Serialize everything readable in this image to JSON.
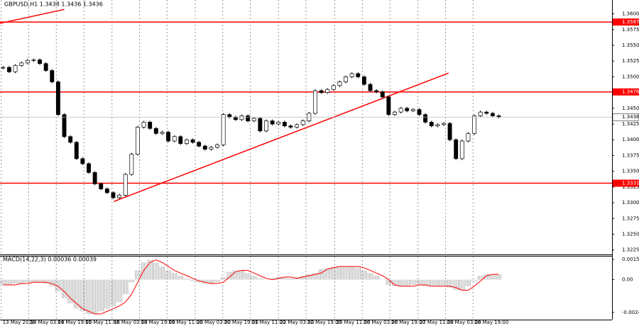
{
  "chart_data": [
    {
      "type": "candlestick",
      "header": "GBPUSD,H1  1.3438 1.3436 1.3436",
      "closes": [
        1.3515,
        1.3508,
        1.3518,
        1.3522,
        1.3526,
        1.3527,
        1.3521,
        1.351,
        1.3492,
        1.344,
        1.3405,
        1.3396,
        1.337,
        1.3362,
        1.3348,
        1.333,
        1.3322,
        1.3316,
        1.3308,
        1.3312,
        1.3345,
        1.3377,
        1.342,
        1.3428,
        1.3418,
        1.341,
        1.3412,
        1.3398,
        1.3405,
        1.3394,
        1.34,
        1.3396,
        1.339,
        1.3385,
        1.3388,
        1.3392,
        1.344,
        1.3436,
        1.3432,
        1.3438,
        1.343,
        1.3434,
        1.3414,
        1.343,
        1.3425,
        1.3428,
        1.3422,
        1.342,
        1.3424,
        1.343,
        1.3442,
        1.3478,
        1.3475,
        1.348,
        1.3486,
        1.3492,
        1.35,
        1.3505,
        1.35,
        1.3488,
        1.3478,
        1.3476,
        1.3468,
        1.344,
        1.3444,
        1.345,
        1.3446,
        1.3448,
        1.344,
        1.3428,
        1.3422,
        1.3424,
        1.3426,
        1.34,
        1.337,
        1.3398,
        1.341,
        1.3438,
        1.3444,
        1.3442,
        1.3438,
        1.3436
      ],
      "xlim": [
        0,
        100
      ],
      "ylim": [
        1.3219,
        1.3622
      ],
      "yticks": [
        1.3225,
        {
          "value": 1.325,
          "label": "1.3250"
        },
        1.3275,
        {
          "value": 1.33,
          "label": "1.3300"
        },
        1.3325,
        {
          "value": 1.335,
          "label": "1.3350"
        },
        1.3375,
        {
          "value": 1.34,
          "label": "1.3400"
        },
        1.3425,
        {
          "value": 1.345,
          "label": "1.3450"
        },
        1.3475,
        {
          "value": 1.35,
          "label": "1.3500"
        },
        1.3525,
        {
          "value": 1.355,
          "label": "1.3550"
        },
        1.3575,
        {
          "value": 1.36,
          "label": "1.3600"
        }
      ],
      "levels": [
        1.3587,
        1.3476,
        1.3331
      ],
      "level_color": "#ff0000",
      "trendlines": [
        {
          "x": [
            18.6,
            73.3
          ],
          "y": [
            1.3302,
            1.3506
          ]
        },
        {
          "x": [
            0,
            10.5
          ],
          "y": [
            1.3585,
            1.3607
          ]
        }
      ],
      "xticks": [
        {
          "value": 0.2,
          "label": "13 May 2026"
        },
        {
          "value": 4.7,
          "label": "14 May 03:00"
        },
        {
          "value": 9.2,
          "label": "14 May 19:00"
        },
        {
          "value": 13.7,
          "label": "15 May 11:00"
        },
        {
          "value": 18.3,
          "label": "18 May 03:00"
        },
        {
          "value": 22.8,
          "label": "18 May 19:00"
        },
        {
          "value": 27.3,
          "label": "19 May 11:00"
        },
        {
          "value": 31.9,
          "label": "20 May 03:00"
        },
        {
          "value": 36.4,
          "label": "20 May 19:00"
        },
        {
          "value": 40.9,
          "label": "21 May 11:00"
        },
        {
          "value": 45.5,
          "label": "22 May 03:00"
        },
        {
          "value": 50,
          "label": "22 May 19:00"
        },
        {
          "value": 54.7,
          "label": "25 May 11:00"
        },
        {
          "value": 59.2,
          "label": "26 May 03:00"
        },
        {
          "value": 63.7,
          "label": "26 May 19:00"
        },
        {
          "value": 68.3,
          "label": "27 May 11:00"
        },
        {
          "value": 72.8,
          "label": "28 May 03:00"
        },
        {
          "value": 77.3,
          "label": "28 May 19:00"
        }
      ],
      "grid": true
    },
    {
      "type": "macd",
      "header": "MACD(14,22,3) 0.00036 0.00039",
      "histogram": [
        -0.0004,
        -0.0004,
        -0.0003,
        -0.0003,
        -0.0002,
        -0.0002,
        -0.0002,
        -0.0003,
        -0.0005,
        -0.0009,
        -0.0014,
        -0.0018,
        -0.0022,
        -0.0024,
        -0.0026,
        -0.0026,
        -0.0024,
        -0.0022,
        -0.002,
        -0.0017,
        -0.0011,
        -0.0002,
        0.0007,
        0.0013,
        0.0015,
        0.0013,
        0.001,
        0.0007,
        0.0005,
        0.0003,
        0.0001,
        -0.0001,
        -0.0002,
        -0.0003,
        -0.0003,
        -0.0002,
        0.0002,
        0.0006,
        0.0007,
        0.0007,
        0.0005,
        0.0003,
        0.0001,
        0.0,
        0.0001,
        0.0002,
        0.0002,
        0.0001,
        0.0002,
        0.0003,
        0.0004,
        0.0005,
        0.0008,
        0.0009,
        0.001,
        0.001,
        0.001,
        0.001,
        0.0009,
        0.0007,
        0.0005,
        0.0003,
        0.0,
        -0.0004,
        -0.0005,
        -0.0005,
        -0.0005,
        -0.0004,
        -0.0004,
        -0.0005,
        -0.0005,
        -0.0005,
        -0.0005,
        -0.0006,
        -0.0008,
        -0.0008,
        -0.0005,
        -0.0001,
        0.0003,
        0.0004,
        0.0004,
        0.0004
      ],
      "signal": [
        -0.0004,
        -0.0004,
        -0.0004,
        -0.0003,
        -0.0003,
        -0.0002,
        -0.0002,
        -0.0002,
        -0.0003,
        -0.0005,
        -0.0009,
        -0.0014,
        -0.0018,
        -0.0022,
        -0.0024,
        -0.0026,
        -0.0026,
        -0.0024,
        -0.0022,
        -0.002,
        -0.0017,
        -0.0011,
        -0.0002,
        0.0007,
        0.0013,
        0.0015,
        0.0013,
        0.001,
        0.0007,
        0.0005,
        0.0003,
        0.0001,
        -0.0001,
        -0.0002,
        -0.0003,
        -0.0003,
        -0.0002,
        0.0002,
        0.0006,
        0.0007,
        0.0007,
        0.0005,
        0.0003,
        0.0001,
        0.0,
        0.0001,
        0.0002,
        0.0002,
        0.0001,
        0.0002,
        0.0003,
        0.0004,
        0.0005,
        0.0008,
        0.0009,
        0.001,
        0.001,
        0.001,
        0.001,
        0.0009,
        0.0007,
        0.0005,
        0.0003,
        0.0,
        -0.0004,
        -0.0005,
        -0.0005,
        -0.0005,
        -0.0004,
        -0.0004,
        -0.0005,
        -0.0005,
        -0.0005,
        -0.0005,
        -0.0006,
        -0.0008,
        -0.0008,
        -0.0005,
        -0.0001,
        0.0003,
        0.0004,
        0.0004
      ],
      "histogram_color": "#a0a0a0",
      "signal_color": "#ff0000",
      "xlim": [
        0,
        100
      ],
      "ylim": [
        -0.00303,
        0.00175
      ],
      "yticks": [
        0.00153,
        {
          "value": 0,
          "label": "0.00"
        },
        -0.00248
      ]
    }
  ]
}
